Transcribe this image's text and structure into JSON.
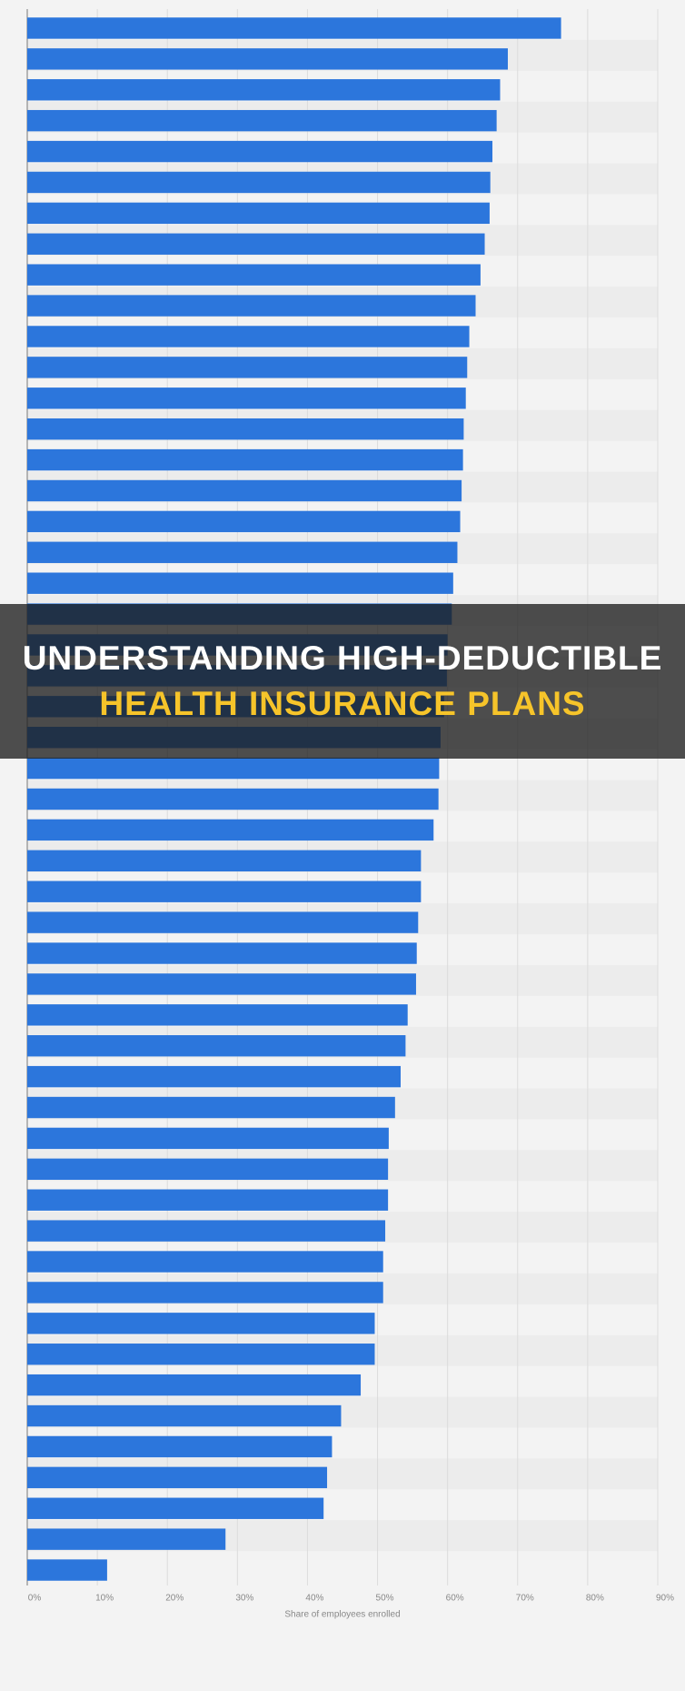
{
  "chart_data": {
    "type": "hbar",
    "values": [
      76.2,
      68.6,
      67.5,
      67,
      66.4,
      66.1,
      66,
      65.3,
      64.7,
      64,
      63.1,
      62.8,
      62.6,
      62.3,
      62.2,
      62,
      61.8,
      61.4,
      60.8,
      60.6,
      60,
      59.9,
      59.5,
      59,
      58.8,
      58.7,
      58,
      56.2,
      56.2,
      55.8,
      55.6,
      55.5,
      54.3,
      54,
      53.3,
      52.5,
      51.6,
      51.5,
      51.5,
      51.1,
      50.8,
      50.8,
      49.6,
      49.6,
      47.6,
      44.8,
      43.5,
      42.8,
      42.3,
      28.3,
      11.4
    ],
    "color": "#2c76dc",
    "xlim": [
      0,
      90
    ],
    "xticks": [
      {
        "value": 0,
        "label": "0%"
      },
      {
        "value": 10,
        "label": "10%"
      },
      {
        "value": 20,
        "label": "20%"
      },
      {
        "value": 30,
        "label": "30%"
      },
      {
        "value": 40,
        "label": "40%"
      },
      {
        "value": 50,
        "label": "50%"
      },
      {
        "value": 60,
        "label": "60%"
      },
      {
        "value": 70,
        "label": "70%"
      },
      {
        "value": 80,
        "label": "80%"
      },
      {
        "value": 90,
        "label": "90%"
      }
    ],
    "x_label": "Share of employees enrolled",
    "grid": true
  },
  "overlay": {
    "line1": "UNDERSTANDING HIGH-DEDUCTIBLE",
    "line2": "HEALTH INSURANCE PLANS"
  }
}
